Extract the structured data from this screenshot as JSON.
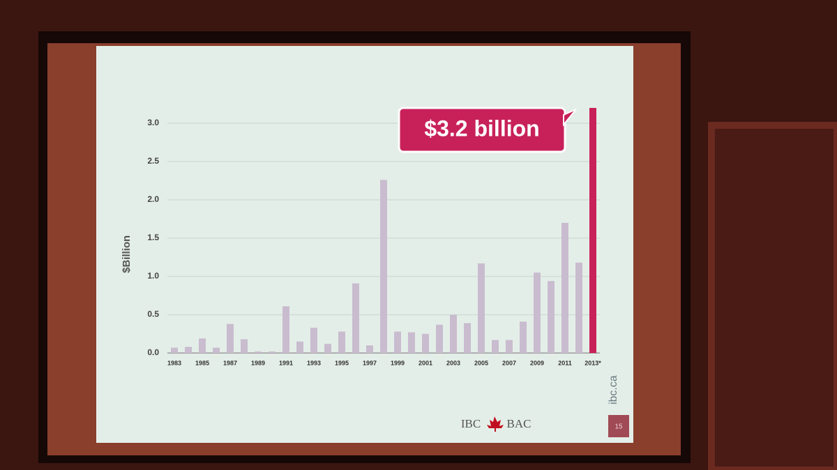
{
  "chart_data": {
    "type": "bar",
    "y_label": "$Billion",
    "categories": [
      "1983",
      null,
      "1985",
      null,
      "1987",
      null,
      "1989",
      null,
      "1991",
      null,
      "1993",
      null,
      "1995",
      null,
      "1997",
      null,
      "1999",
      null,
      "2001",
      null,
      "2003",
      null,
      "2005",
      null,
      "2007",
      null,
      "2009",
      null,
      "2011",
      null,
      "2013*"
    ],
    "values": [
      0.07,
      0.08,
      0.19,
      0.07,
      0.38,
      0.18,
      0.02,
      0.02,
      0.61,
      0.15,
      0.33,
      0.12,
      0.28,
      0.91,
      0.1,
      2.26,
      0.28,
      0.27,
      0.25,
      0.37,
      0.5,
      0.39,
      1.17,
      0.17,
      0.17,
      0.41,
      1.05,
      0.94,
      1.7,
      1.18,
      3.2
    ],
    "value_labels": [
      null,
      null,
      null,
      null,
      null,
      null,
      null,
      null,
      null,
      null,
      null,
      null,
      null,
      null,
      null,
      null,
      null,
      null,
      null,
      null,
      null,
      null,
      null,
      null,
      null,
      null,
      null,
      null,
      null,
      null,
      "$3.2 billion"
    ],
    "colors": [
      "#c9bccf",
      "#c9bccf",
      "#c9bccf",
      "#c9bccf",
      "#c9bccf",
      "#c9bccf",
      "#c9bccf",
      "#c9bccf",
      "#c9bccf",
      "#c9bccf",
      "#c9bccf",
      "#c9bccf",
      "#c9bccf",
      "#c9bccf",
      "#c9bccf",
      "#c9bccf",
      "#c9bccf",
      "#c9bccf",
      "#c9bccf",
      "#c9bccf",
      "#c9bccf",
      "#c9bccf",
      "#c9bccf",
      "#c9bccf",
      "#c9bccf",
      "#c9bccf",
      "#c9bccf",
      "#c9bccf",
      "#c9bccf",
      "#c9bccf",
      "#c8215a"
    ],
    "ylim": [
      0,
      3.3
    ],
    "yticks": [
      {
        "value": 0,
        "label": "0.0"
      },
      0.5,
      {
        "value": 1,
        "label": "1.0"
      },
      1.5,
      {
        "value": 2,
        "label": "2.0"
      },
      2.5,
      {
        "value": 3,
        "label": "3.0"
      }
    ],
    "grid": true
  },
  "slide": {
    "url": "ibc.ca",
    "logo_left": "IBC",
    "logo_right": "BAC",
    "page_number": "15"
  }
}
